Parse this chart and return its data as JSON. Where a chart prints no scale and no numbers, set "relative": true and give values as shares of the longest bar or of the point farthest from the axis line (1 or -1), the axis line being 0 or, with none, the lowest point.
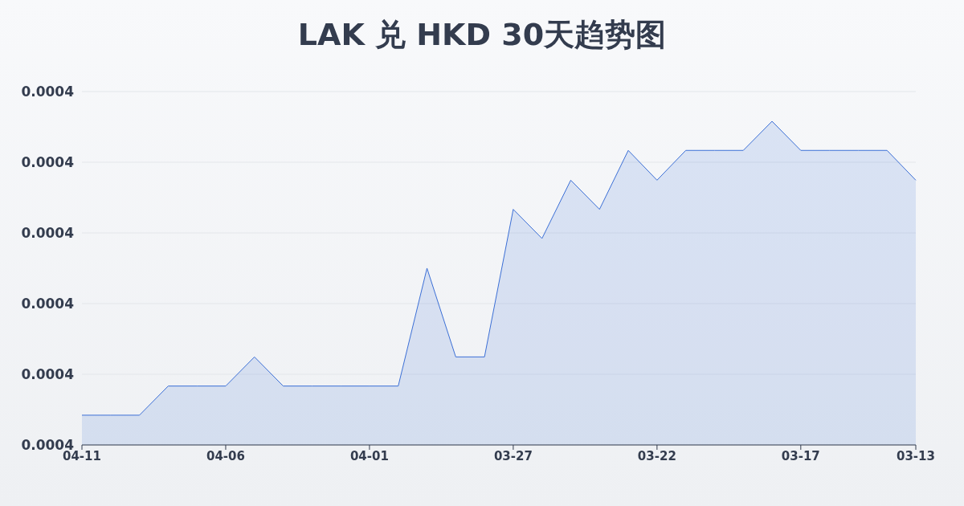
{
  "chart_data": {
    "type": "area",
    "title": "LAK 兑 HKD 30天趋势图",
    "relative": true,
    "categories": [
      "04-11",
      null,
      null,
      null,
      null,
      "04-06",
      null,
      null,
      null,
      null,
      "04-01",
      null,
      null,
      null,
      null,
      "03-27",
      null,
      null,
      null,
      null,
      "03-22",
      null,
      null,
      null,
      null,
      "03-17",
      null,
      null,
      null,
      "03-13"
    ],
    "series": [
      {
        "color": "#3b6fd6",
        "values": [
          0.092,
          0.092,
          0.092,
          0.182,
          0.182,
          0.182,
          0.272,
          0.182,
          0.182,
          0.182,
          0.182,
          0.182,
          0.546,
          0.272,
          0.272,
          0.728,
          0.638,
          0.818,
          0.728,
          0.91,
          0.818,
          0.91,
          0.91,
          0.91,
          1,
          0.91,
          0.91,
          0.91,
          0.91,
          0.818
        ]
      }
    ],
    "annotations": [
      "0.0004",
      "0.0004",
      "0.0004",
      "0.0004",
      "0.0004",
      "0.0004"
    ],
    "grid": "y",
    "marker": "none",
    "line_style": "solid"
  }
}
